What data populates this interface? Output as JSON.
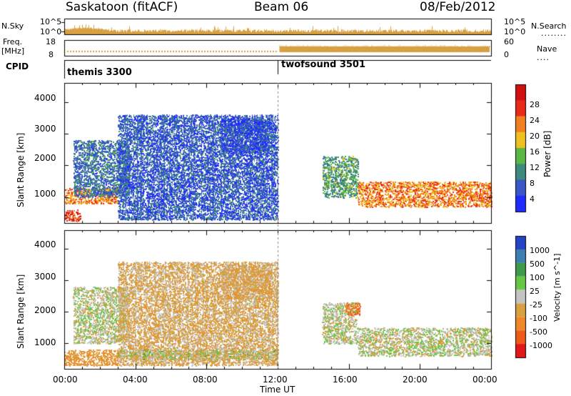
{
  "header": {
    "radar": "Saskatoon (fitACF)",
    "beam": "Beam 06",
    "date": "08/Feb/2012"
  },
  "nsky_panel": {
    "left_label": "N.Sky",
    "right_label": "N.Search",
    "right_marker": "........",
    "left_ticks": [
      "10^5",
      "10^0"
    ],
    "right_ticks": [
      "10^5",
      "10^0"
    ]
  },
  "freq_panel": {
    "left_label_line1": "Freq.",
    "left_label_line2": "[MHz]",
    "left_ticks": [
      "18",
      "8"
    ],
    "right_ticks": [
      "60",
      "0"
    ],
    "right_label": "Nave",
    "right_marker": "...."
  },
  "cpid_panel": {
    "label": "CPID",
    "modes": [
      {
        "name": "themis 3300",
        "start_hour": 0
      },
      {
        "name": "twofsound 3501",
        "start_hour": 12
      }
    ]
  },
  "power_panel": {
    "ylabel": "Slant Range [km]",
    "yticks": [
      "1000",
      "2000",
      "3000",
      "4000"
    ],
    "colorbar_label": "Power [dB]",
    "colorbar_ticks": [
      "4",
      "8",
      "12",
      "16",
      "20",
      "24",
      "28"
    ],
    "colorbar_colors": [
      "#1f2cff",
      "#3a57c8",
      "#3f8a7d",
      "#5bb845",
      "#f0c020",
      "#f08020",
      "#ea2a18",
      "#d01010"
    ]
  },
  "velocity_panel": {
    "ylabel": "Slant Range [km]",
    "yticks": [
      "1000",
      "2000",
      "3000",
      "4000"
    ],
    "colorbar_label": "Velocity [m s^-1]",
    "colorbar_ticks": [
      "1000",
      "500",
      "100",
      "25",
      "-25",
      "-100",
      "-500",
      "-1000"
    ],
    "colorbar_colors": [
      "#2544c4",
      "#3d7fb0",
      "#3f9a4a",
      "#67c644",
      "#c4c4c4",
      "#d8a040",
      "#f08828",
      "#ee5a18",
      "#e21818"
    ]
  },
  "time_axis": {
    "xlabel": "Time UT",
    "ticks": [
      "00:00",
      "04:00",
      "08:00",
      "12:00",
      "16:00",
      "20:00",
      "00:00"
    ]
  },
  "chart_data": [
    {
      "type": "heatmap",
      "title": "Power",
      "xlabel": "Time UT",
      "ylabel": "Slant Range [km]",
      "xlim_hours": [
        0,
        24
      ],
      "ylim_km": [
        180,
        4600
      ],
      "legend_placement": "right",
      "colorbar": {
        "label": "Power [dB]",
        "range": [
          0,
          32
        ]
      },
      "regions": [
        {
          "from_hour": 0.0,
          "to_hour": 0.9,
          "range_km": [
            250,
            600
          ],
          "value_db": 26
        },
        {
          "from_hour": 0.0,
          "to_hour": 3.0,
          "range_km": [
            800,
            1300
          ],
          "value_db": 22
        },
        {
          "from_hour": 0.5,
          "to_hour": 3.6,
          "range_km": [
            1000,
            2800
          ],
          "value_db": 8
        },
        {
          "from_hour": 3.0,
          "to_hour": 12.0,
          "range_km": [
            300,
            3600
          ],
          "value_db": 6
        },
        {
          "from_hour": 8.8,
          "to_hour": 11.6,
          "range_km": [
            2400,
            3500
          ],
          "value_db": 5
        },
        {
          "from_hour": 14.5,
          "to_hour": 16.5,
          "range_km": [
            1000,
            2300
          ],
          "value_db": 12
        },
        {
          "from_hour": 16.5,
          "to_hour": 24.0,
          "range_km": [
            700,
            1500
          ],
          "value_db": 22
        }
      ]
    },
    {
      "type": "heatmap",
      "title": "Velocity",
      "xlabel": "Time UT",
      "ylabel": "Slant Range [km]",
      "xlim_hours": [
        0,
        24
      ],
      "ylim_km": [
        180,
        4600
      ],
      "legend_placement": "right",
      "colorbar": {
        "label": "Velocity [m s^-1]",
        "range": [
          -1000,
          1000
        ]
      },
      "regions": [
        {
          "from_hour": 0.0,
          "to_hour": 3.0,
          "range_km": [
            300,
            800
          ],
          "value_ms": -100
        },
        {
          "from_hour": 0.5,
          "to_hour": 3.6,
          "range_km": [
            1000,
            2800
          ],
          "value_ms": 0
        },
        {
          "from_hour": 3.0,
          "to_hour": 12.0,
          "range_km": [
            500,
            800
          ],
          "value_ms": 60
        },
        {
          "from_hour": 3.0,
          "to_hour": 12.0,
          "range_km": [
            300,
            3600
          ],
          "value_ms": -50
        },
        {
          "from_hour": 8.8,
          "to_hour": 11.6,
          "range_km": [
            2400,
            3500
          ],
          "value_ms": -60
        },
        {
          "from_hour": 14.5,
          "to_hour": 16.5,
          "range_km": [
            1000,
            2300
          ],
          "value_ms": 0
        },
        {
          "from_hour": 15.8,
          "to_hour": 16.6,
          "range_km": [
            1900,
            2300
          ],
          "value_ms": -500
        },
        {
          "from_hour": 16.5,
          "to_hour": 24.0,
          "range_km": [
            600,
            1500
          ],
          "value_ms": 0
        }
      ]
    }
  ]
}
